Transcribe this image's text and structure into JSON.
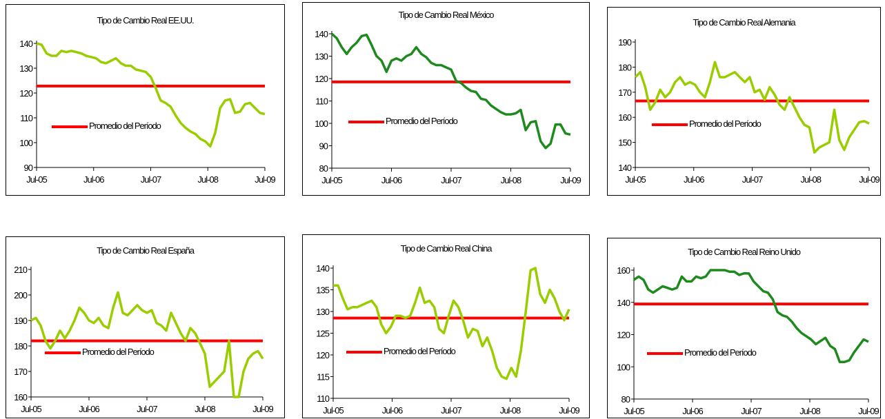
{
  "chart_data": [
    {
      "type": "line",
      "title": "Tipo de Cambio Real EE.UU.",
      "x_ticks": [
        "Jul-05",
        "Jul-06",
        "Jul-07",
        "Jul-08",
        "Jul-09"
      ],
      "ylim": [
        90,
        140
      ],
      "y_ticks": [
        90,
        100,
        110,
        120,
        130,
        140
      ],
      "line_color": "#9acd00",
      "average_color": "#ff0000",
      "average_label": "Promedio del Período",
      "average_value": 122.8,
      "values": [
        140,
        139.5,
        136,
        135,
        135,
        137,
        136.5,
        137,
        136.5,
        136,
        135,
        134.5,
        134,
        132.5,
        132,
        133,
        134,
        132,
        131,
        131,
        129.5,
        129,
        128.5,
        126.5,
        122,
        117,
        116,
        114.5,
        111,
        108,
        106,
        104.5,
        103.5,
        101.5,
        100.5,
        98.5,
        104,
        114,
        117,
        117.5,
        112,
        112.5,
        115.5,
        116,
        114,
        112,
        111.5
      ]
    },
    {
      "type": "line",
      "title": "Tipo de Cambio Real México",
      "x_ticks": [
        "Jul-05",
        "Jul-06",
        "Jul-07",
        "Jul-08",
        "Jul-09"
      ],
      "ylim": [
        80,
        140
      ],
      "y_ticks": [
        80,
        90,
        100,
        110,
        120,
        130,
        140
      ],
      "line_color": "#1e8a1e",
      "average_color": "#ff0000",
      "average_label": "Promedio del Período",
      "average_value": 118.5,
      "values": [
        140,
        138,
        134,
        131,
        134,
        136,
        139,
        139.5,
        135,
        130,
        128,
        123,
        128,
        129,
        128,
        130,
        131,
        134,
        131,
        129.5,
        127,
        126,
        126,
        125,
        124,
        119,
        118,
        116,
        114.5,
        114,
        111,
        110.5,
        108,
        106.5,
        105,
        104,
        104,
        104.5,
        106,
        97,
        100.5,
        101,
        92,
        89,
        91,
        99.5,
        99.5,
        95.5,
        95
      ]
    },
    {
      "type": "line",
      "title": "Tipo de Cambio Real Alemania",
      "x_ticks": [
        "Jul-05",
        "Jul-06",
        "Jul-07",
        "Jul-08",
        "Jul-09"
      ],
      "ylim": [
        140,
        190
      ],
      "y_ticks": [
        140,
        150,
        160,
        170,
        180,
        190
      ],
      "line_color": "#9acd00",
      "average_color": "#ff0000",
      "average_label": "Promedio del Período",
      "average_value": 166.5,
      "values": [
        176,
        178,
        172,
        163,
        166,
        171,
        168,
        170,
        174,
        176,
        173,
        174,
        173,
        170,
        168,
        174,
        182,
        176,
        176,
        177,
        178,
        176,
        174,
        176,
        170,
        171,
        167,
        172,
        169,
        165,
        163,
        168,
        164,
        160,
        157,
        156,
        146,
        148,
        149,
        150,
        163,
        151,
        147,
        152,
        155,
        158,
        158.5,
        157.5
      ]
    },
    {
      "type": "line",
      "title": "Tipo de Cambio Real España",
      "x_ticks": [
        "Jul-05",
        "Jul-06",
        "Jul-07",
        "Jul-08",
        "Jul-09"
      ],
      "ylim": [
        160,
        210
      ],
      "y_ticks": [
        160,
        170,
        180,
        190,
        200,
        210
      ],
      "line_color": "#9acd00",
      "average_color": "#ff0000",
      "average_label": "Promedio del Período",
      "average_value": 182,
      "values": [
        190,
        191,
        188,
        182,
        179,
        182,
        186,
        183,
        186,
        190,
        195,
        193,
        190,
        189,
        191,
        188,
        187,
        195,
        201,
        193,
        192,
        194,
        196,
        194,
        193,
        194,
        189,
        188,
        186,
        193,
        189,
        185,
        182,
        187,
        185,
        181,
        177,
        164,
        166,
        168,
        170,
        182,
        160,
        160,
        170,
        175,
        177,
        178,
        175
      ]
    },
    {
      "type": "line",
      "title": "Tipo de Cambio Real China",
      "x_ticks": [
        "Jul-05",
        "Jul-06",
        "Jul-07",
        "Jul-08",
        "Jul-09"
      ],
      "ylim": [
        110,
        140
      ],
      "y_ticks": [
        110,
        115,
        120,
        125,
        130,
        135,
        140
      ],
      "line_color": "#9acd00",
      "average_color": "#ff0000",
      "average_label": "Promedio del Período",
      "average_value": 128.5,
      "values": [
        136,
        136,
        133,
        130.5,
        131,
        131,
        131.5,
        132,
        132.5,
        131,
        127,
        125,
        126.5,
        129,
        129,
        128.5,
        129,
        132,
        135.5,
        132,
        132.5,
        131,
        126,
        125,
        129,
        132.5,
        131,
        128,
        124,
        126,
        125.5,
        122,
        124,
        121,
        117,
        115,
        114.5,
        117,
        115,
        121,
        130,
        139.5,
        140,
        134,
        132,
        135,
        133,
        130,
        128,
        130.5
      ]
    },
    {
      "type": "line",
      "title": "Tipo de Cambio Real Reino Unido",
      "x_ticks": [
        "Jul-05",
        "Jul-06",
        "Jul-07",
        "Jul-08",
        "Jul-09"
      ],
      "ylim": [
        80,
        160
      ],
      "y_ticks": [
        80,
        100,
        120,
        140,
        160
      ],
      "line_color": "#1e8a1e",
      "average_color": "#ff0000",
      "average_label": "Promedio del Período",
      "average_value": 139,
      "values": [
        154,
        156,
        154,
        148,
        146,
        148,
        150,
        149,
        148,
        149,
        156,
        153,
        153,
        156,
        155,
        156,
        160,
        165,
        161,
        160,
        159,
        159,
        157,
        158,
        158,
        153,
        150,
        147,
        146,
        142,
        134,
        132,
        131,
        128,
        124,
        121,
        119,
        117,
        114,
        116,
        118,
        113,
        111,
        103,
        103,
        104,
        109,
        113,
        117,
        115.5
      ]
    }
  ]
}
